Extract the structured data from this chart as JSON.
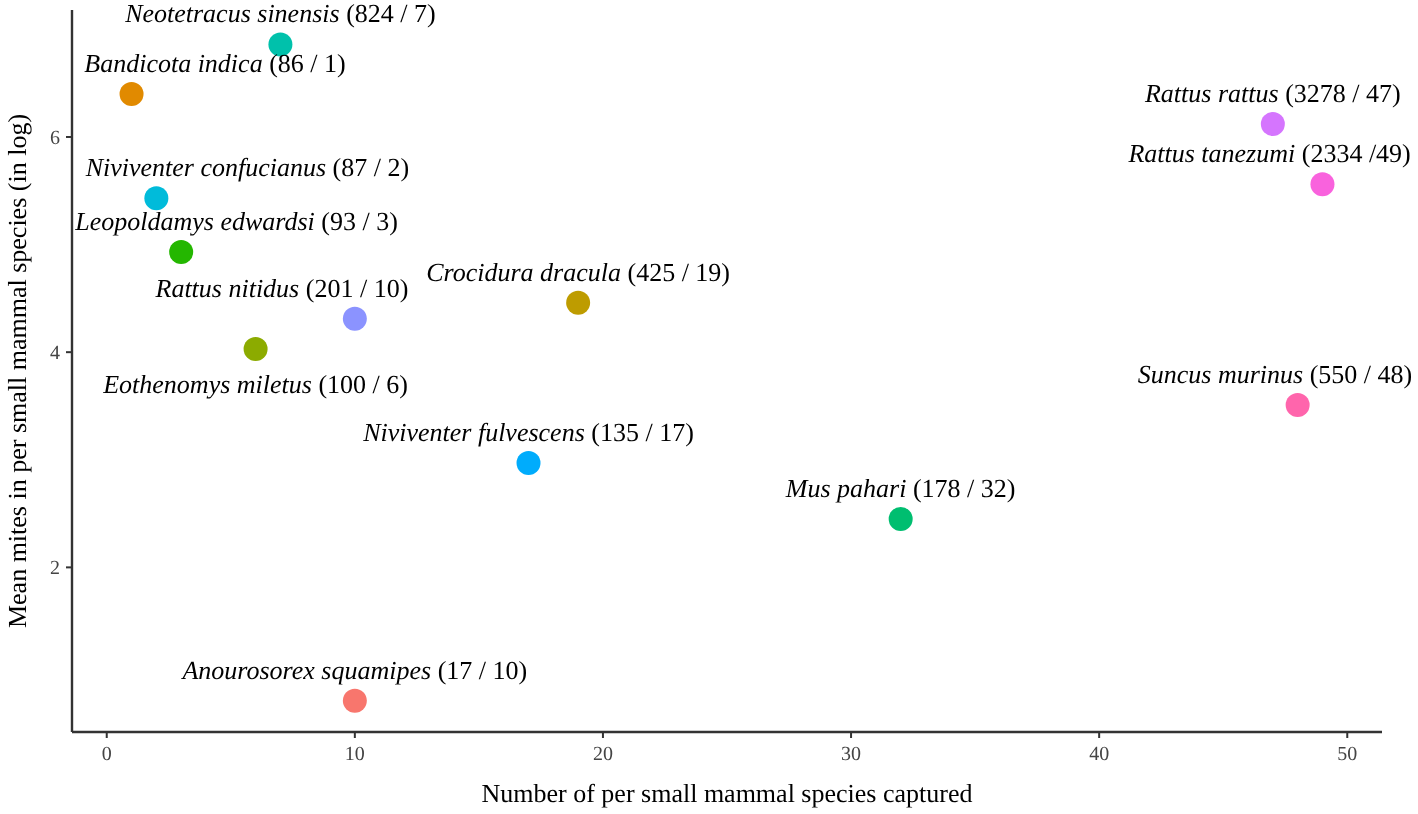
{
  "chart_data": {
    "type": "scatter",
    "xlabel": "Number of per small mammal species captured",
    "ylabel": "Mean mites in per small mammal species (in log)",
    "xlim": [
      -1.4,
      51.4
    ],
    "ylim": [
      0.47,
      7.18
    ],
    "xticks": [
      0,
      10,
      20,
      30,
      40,
      50
    ],
    "yticks": [
      2,
      4,
      6
    ],
    "grid": false,
    "marker": "circle",
    "x": [
      10,
      1,
      19,
      6,
      3,
      32,
      7,
      2,
      17,
      10,
      47,
      49,
      48
    ],
    "values": [
      0.76,
      6.4,
      4.46,
      4.03,
      4.93,
      2.45,
      6.86,
      5.43,
      2.97,
      4.31,
      6.12,
      5.56,
      3.51
    ],
    "colors": [
      "#f8766d",
      "#e18a00",
      "#be9c00",
      "#8cab00",
      "#24b700",
      "#00be70",
      "#00c1ab",
      "#00bbda",
      "#00acfc",
      "#8b93ff",
      "#d575fe",
      "#f962dd",
      "#ff65ac"
    ],
    "annotations": [
      {
        "text": "Anourosorex squamipes (17 / 10)",
        "x": 10,
        "y": 0.76
      },
      {
        "text": "Bandicota indica (86 / 1)",
        "x": 1,
        "y": 6.4
      },
      {
        "text": "Crocidura dracula (425 / 19)",
        "x": 19,
        "y": 4.46
      },
      {
        "text": "Eothenomys miletus (100 / 6)",
        "x": 6,
        "y": 4.03
      },
      {
        "text": "Leopoldamys edwardsi (93 / 3)",
        "x": 3,
        "y": 4.93
      },
      {
        "text": "Mus pahari (178 / 32)",
        "x": 32,
        "y": 2.45
      },
      {
        "text": "Neotetracus sinensis (824 / 7)",
        "x": 7,
        "y": 6.86
      },
      {
        "text": "Niviventer confucianus (87 / 2)",
        "x": 2,
        "y": 5.43
      },
      {
        "text": "Niviventer fulvescens (135 / 17)",
        "x": 17,
        "y": 2.97
      },
      {
        "text": "Rattus nitidus (201 / 10)",
        "x": 10,
        "y": 4.31
      },
      {
        "text": "Rattus rattus (3278 / 47)",
        "x": 47,
        "y": 6.12
      },
      {
        "text": "Rattus tanezumi (2334 /49)",
        "x": 49,
        "y": 5.56
      },
      {
        "text": "Suncus murinus (550 / 48)",
        "x": 48,
        "y": 3.51
      }
    ]
  }
}
